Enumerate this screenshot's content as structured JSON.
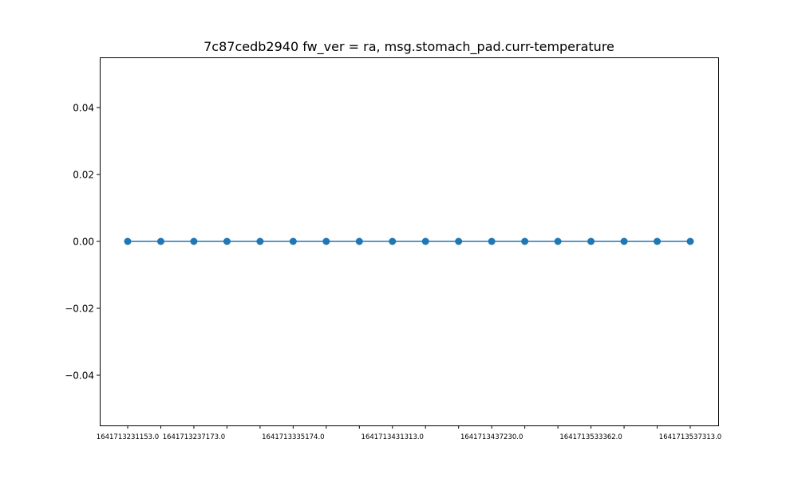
{
  "chart_data": {
    "type": "line",
    "title": "7c87cedb2940 fw_ver = ra, msg.stomach_pad.curr-temperature",
    "xlabel": "",
    "ylabel": "",
    "x_tick_labels": [
      "1641713231153.0",
      "1641713237173.0",
      "1641713335174.0",
      "1641713431313.0",
      "1641713437230.0",
      "1641713533362.0",
      "1641713537313.0"
    ],
    "y_tick_labels": [
      "0.04",
      "0.02",
      "0.00",
      "−0.02",
      "−0.04"
    ],
    "y_ticks": [
      0.04,
      0.02,
      0.0,
      -0.02,
      -0.04
    ],
    "ylim": [
      -0.055,
      0.055
    ],
    "grid": false,
    "series": [
      {
        "values": [
          0,
          0,
          0,
          0,
          0,
          0,
          0,
          0,
          0,
          0,
          0,
          0,
          0,
          0,
          0,
          0,
          0,
          0
        ],
        "color": "#1f77b4",
        "marker": "circle"
      }
    ]
  }
}
